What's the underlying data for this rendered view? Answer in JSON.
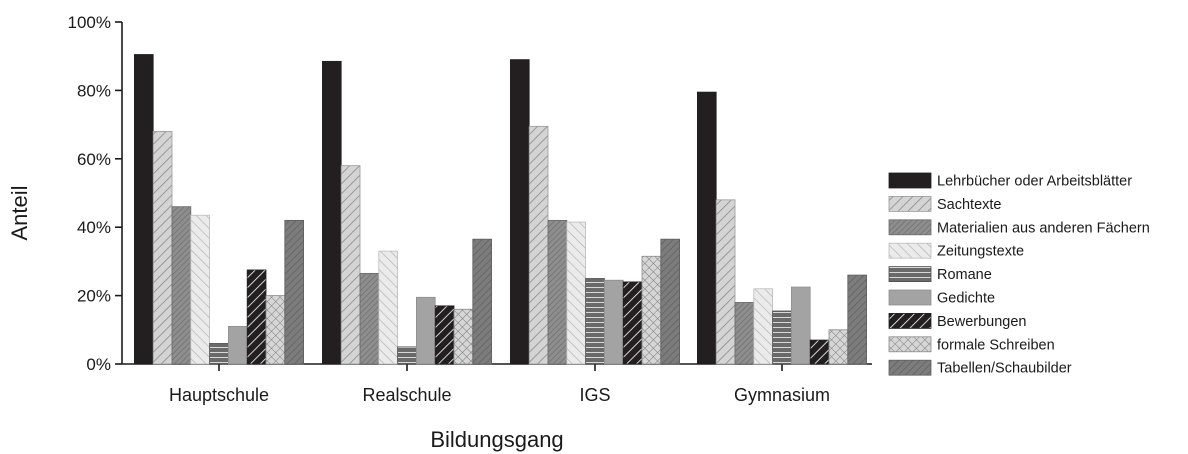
{
  "chart_data": {
    "type": "bar",
    "title": "",
    "xlabel": "Bildungsgang",
    "ylabel": "Anteil",
    "ylim": [
      0,
      100
    ],
    "yticks": [
      0,
      20,
      40,
      60,
      80,
      100
    ],
    "ytick_labels": [
      "0%",
      "20%",
      "40%",
      "60%",
      "80%",
      "100%"
    ],
    "categories": [
      "Hauptschule",
      "Realschule",
      "IGS",
      "Gymnasium"
    ],
    "legend_position": "right",
    "grid": false,
    "series": [
      {
        "name": "Lehrbücher oder Arbeitsblätter",
        "values": [
          90.5,
          88.5,
          89,
          79.5
        ],
        "color": "#231f20",
        "pattern": "solid-black"
      },
      {
        "name": "Sachtexte",
        "values": [
          68,
          58,
          69.5,
          48
        ],
        "color": "#c8c8c8",
        "pattern": "diag-right"
      },
      {
        "name": "Materialien aus anderen Fächern",
        "values": [
          46,
          26.5,
          42,
          18
        ],
        "color": "#858585",
        "pattern": "dense-diag"
      },
      {
        "name": "Zeitungstexte",
        "values": [
          43.5,
          33,
          41.5,
          22
        ],
        "color": "#e0e0e0",
        "pattern": "diag-left"
      },
      {
        "name": "Romane",
        "values": [
          6,
          5,
          25,
          15.5
        ],
        "color": "#6a6a6a",
        "pattern": "horizontal"
      },
      {
        "name": "Gedichte",
        "values": [
          11,
          19.5,
          24.5,
          22.5
        ],
        "color": "#a3a3a3",
        "pattern": "solid-grey"
      },
      {
        "name": "Bewerbungen",
        "values": [
          27.5,
          17,
          24,
          7
        ],
        "color": "#231f20",
        "pattern": "black-diag"
      },
      {
        "name": "formale Schreiben",
        "values": [
          20,
          16,
          31.5,
          10
        ],
        "color": "#d0d0d0",
        "pattern": "crosshatch"
      },
      {
        "name": "Tabellen/Schaubilder",
        "values": [
          42,
          36.5,
          36.5,
          26
        ],
        "color": "#7a7a7a",
        "pattern": "dark-diag"
      }
    ]
  }
}
